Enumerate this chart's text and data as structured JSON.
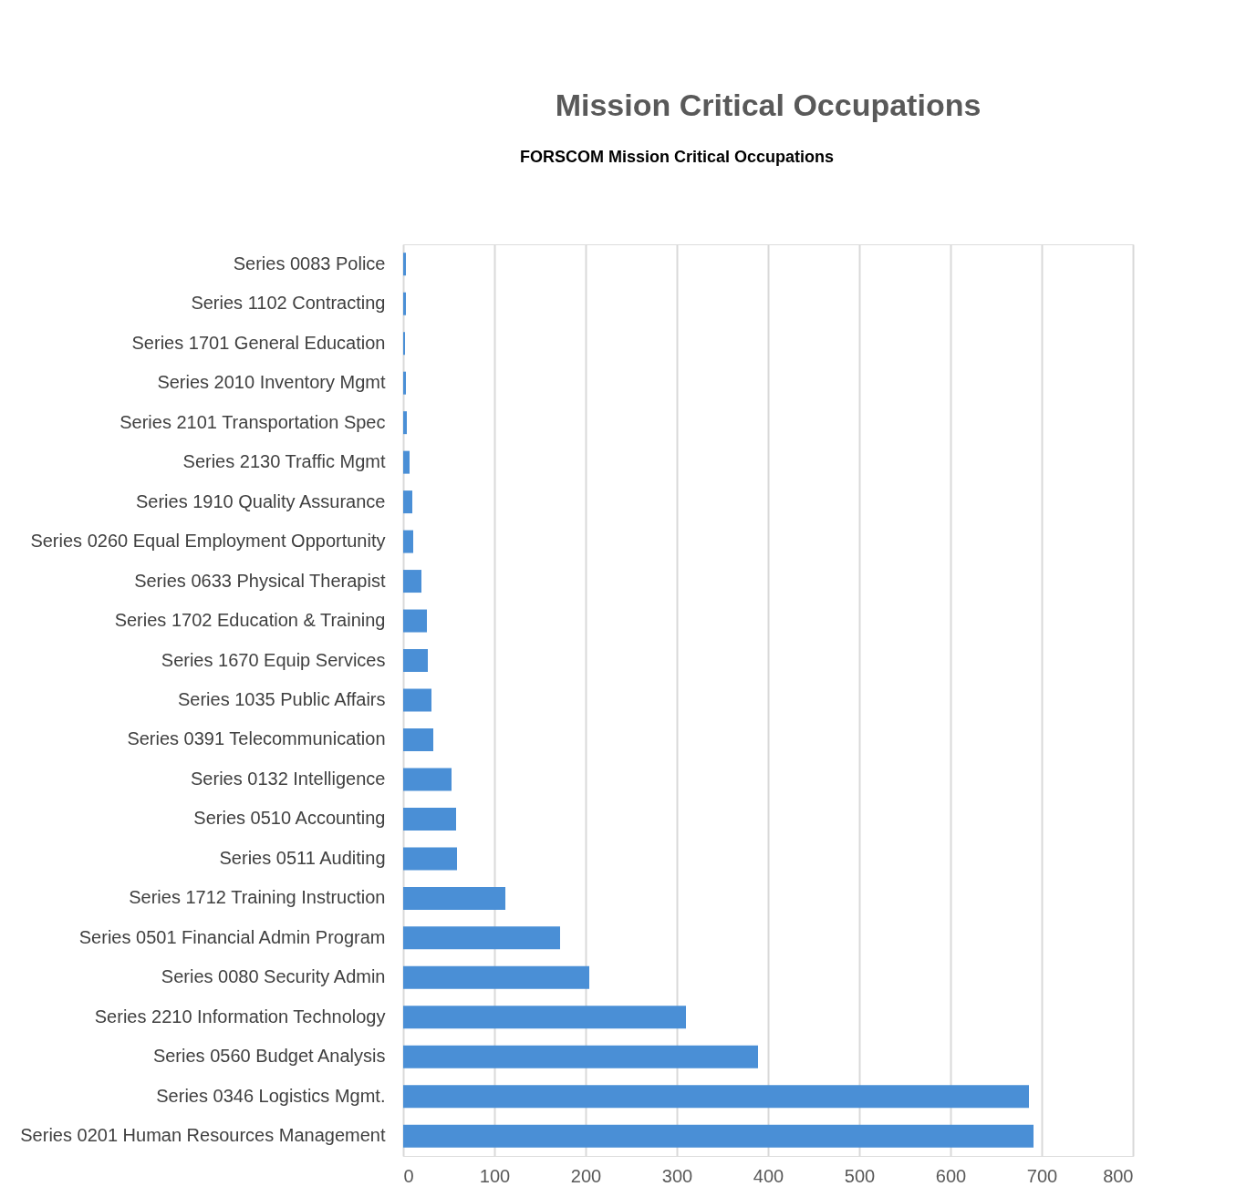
{
  "chart_data": {
    "type": "bar",
    "orientation": "horizontal",
    "title": "Mission Critical Occupations",
    "annotations": [
      "FORSCOM Mission Critical Occupations"
    ],
    "categories": [
      "Series 0083 Police",
      "Series 1102 Contracting",
      "Series 1701 General Education",
      "Series 2010 Inventory Mgmt",
      "Series 2101 Transportation Spec",
      "Series 2130 Traffic Mgmt",
      "Series 1910 Quality Assurance",
      "Series 0260  Equal  Employment  Opportunity",
      "Series 0633 Physical Therapist",
      "Series 1702 Education & Training",
      "Series 1670 Equip Services",
      "Series 1035 Public Affairs",
      "Series 0391 Telecommunication",
      "Series 0132 Intelligence",
      "Series 0510 Accounting",
      "Series 0511 Auditing",
      "Series 1712 Training Instruction",
      "Series 0501 Financial Admin Program",
      "Series 0080 Security Admin",
      "Series  2210  Information  Technology",
      "Series  0560  Budget  Analysis",
      "Series 0346 Logistics Mgmt.",
      "Series 0201  Human  Resources  Management"
    ],
    "values": [
      3,
      3,
      2,
      3,
      4,
      7,
      10,
      11,
      20,
      26,
      27,
      31,
      33,
      53,
      58,
      59,
      112,
      172,
      204,
      310,
      389,
      686,
      691
    ],
    "color": "#4a8fd6",
    "xlim": [
      0,
      800
    ],
    "xticks": [
      0,
      100,
      200,
      300,
      400,
      500,
      600,
      700,
      800
    ],
    "grid": "x"
  }
}
